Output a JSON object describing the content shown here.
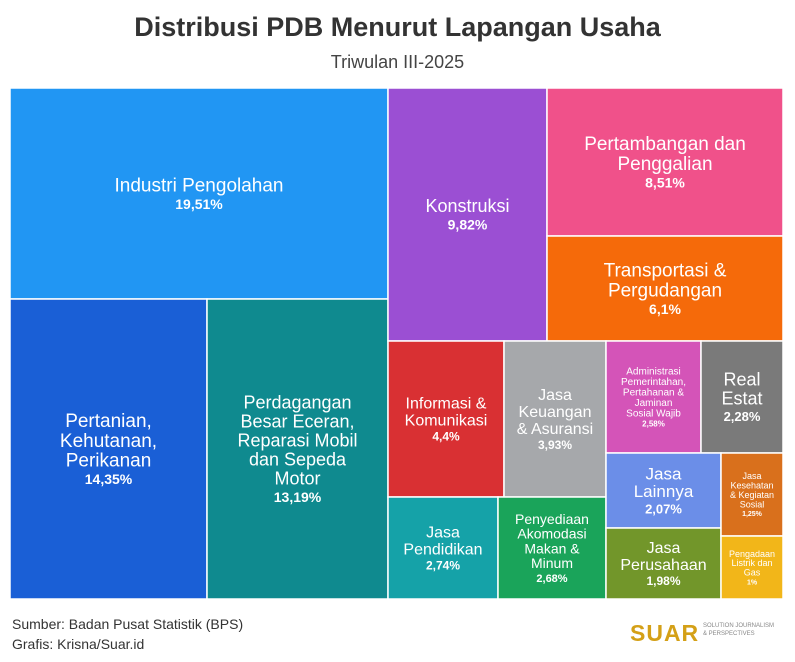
{
  "header": {
    "title": "Distribusi PDB Menurut Lapangan Usaha",
    "subtitle": "Triwulan III-2025"
  },
  "footer": {
    "source": "Sumber: Badan Pusat Statistik (BPS)",
    "credit": "Grafis: Krisna/Suar.id",
    "logo": "SUAR",
    "tagline_1": "SOLUTION JOURNALISM",
    "tagline_2": "& PERSPECTIVES"
  },
  "chart_data": {
    "type": "treemap",
    "title": "Distribusi PDB Menurut Lapangan Usaha",
    "subtitle": "Triwulan III-2025",
    "unit": "%",
    "items": [
      {
        "label": "Industri Pengolahan",
        "value": 19.51,
        "value_label": "19,51%",
        "color": "#2196F3"
      },
      {
        "label": "Pertanian, Kehutanan, Perikanan",
        "value": 14.35,
        "value_label": "14,35%",
        "color": "#1a5fd6"
      },
      {
        "label": "Perdagangan Besar Eceran, Reparasi Mobil dan Sepeda Motor",
        "value": 13.19,
        "value_label": "13,19%",
        "color": "#0f8a8f"
      },
      {
        "label": "Konstruksi",
        "value": 9.82,
        "value_label": "9,82%",
        "color": "#9b4fd3"
      },
      {
        "label": "Pertambangan dan Penggalian",
        "value": 8.51,
        "value_label": "8,51%",
        "color": "#f0518a"
      },
      {
        "label": "Transportasi & Pergudangan",
        "value": 6.1,
        "value_label": "6,1%",
        "color": "#f56a0a"
      },
      {
        "label": "Informasi & Komunikasi",
        "value": 4.4,
        "value_label": "4,4%",
        "color": "#d93033"
      },
      {
        "label": "Jasa Keuangan & Asuransi",
        "value": 3.93,
        "value_label": "3,93%",
        "color": "#a6a8ab"
      },
      {
        "label": "Administrasi Pemerintahan, Pertahanan & Jaminan Sosial Wajib",
        "value": 2.58,
        "value_label": "2,58%",
        "color": "#d454b8"
      },
      {
        "label": "Real Estat",
        "value": 2.28,
        "value_label": "2,28%",
        "color": "#7a7a7a"
      },
      {
        "label": "Jasa Pendidikan",
        "value": 2.74,
        "value_label": "2,74%",
        "color": "#15a2a8"
      },
      {
        "label": "Penyediaan Akomodasi Makan & Minum",
        "value": 2.68,
        "value_label": "2,68%",
        "color": "#1aa45a"
      },
      {
        "label": "Jasa Lainnya",
        "value": 2.07,
        "value_label": "2,07%",
        "color": "#6b8ee8"
      },
      {
        "label": "Jasa Perusahaan",
        "value": 1.98,
        "value_label": "1,98%",
        "color": "#72962a"
      },
      {
        "label": "Jasa Kesehatan & Kegiatan Sosial",
        "value": 1.25,
        "value_label": "1,25%",
        "color": "#d9701c"
      },
      {
        "label": "Pengadaan Listrik dan Gas",
        "value": 1,
        "value_label": "1%",
        "color": "#f2b619"
      }
    ]
  }
}
